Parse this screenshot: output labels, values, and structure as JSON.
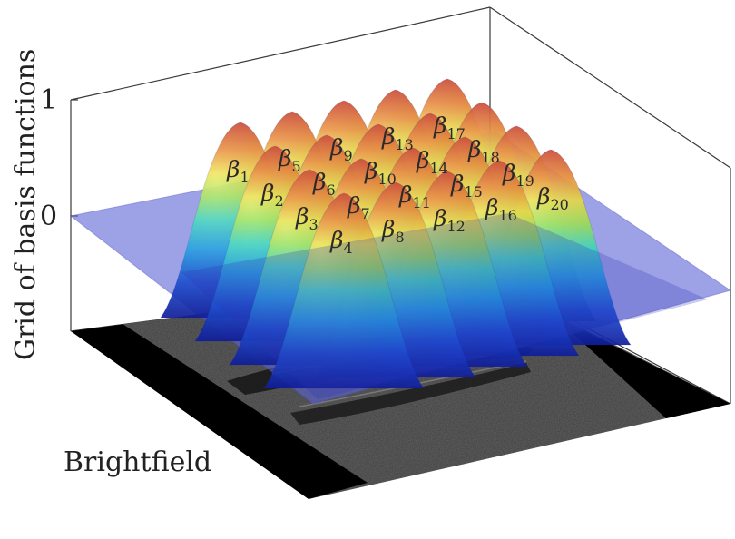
{
  "figure": {
    "y_axis_label": "Grid of basis functions",
    "z_ticks": [
      "1",
      "0"
    ],
    "base_plane_label": "Brightfield"
  },
  "basis_functions": [
    {
      "symbol": "β",
      "index": "1"
    },
    {
      "symbol": "β",
      "index": "2"
    },
    {
      "symbol": "β",
      "index": "3"
    },
    {
      "symbol": "β",
      "index": "4"
    },
    {
      "symbol": "β",
      "index": "5"
    },
    {
      "symbol": "β",
      "index": "6"
    },
    {
      "symbol": "β",
      "index": "7"
    },
    {
      "symbol": "β",
      "index": "8"
    },
    {
      "symbol": "β",
      "index": "9"
    },
    {
      "symbol": "β",
      "index": "10"
    },
    {
      "symbol": "β",
      "index": "11"
    },
    {
      "symbol": "β",
      "index": "12"
    },
    {
      "symbol": "β",
      "index": "13"
    },
    {
      "symbol": "β",
      "index": "14"
    },
    {
      "symbol": "β",
      "index": "15"
    },
    {
      "symbol": "β",
      "index": "16"
    },
    {
      "symbol": "β",
      "index": "17"
    },
    {
      "symbol": "β",
      "index": "18"
    },
    {
      "symbol": "β",
      "index": "19"
    },
    {
      "symbol": "β",
      "index": "20"
    }
  ],
  "colors": {
    "plane": "#5c63d6",
    "colormap": [
      "#1020a8",
      "#1f6ff0",
      "#22c4e8",
      "#7be36a",
      "#f4e23a",
      "#f08a2a",
      "#d83a2a"
    ],
    "image_bg": "#3a3a3a",
    "mask": "#000000"
  }
}
